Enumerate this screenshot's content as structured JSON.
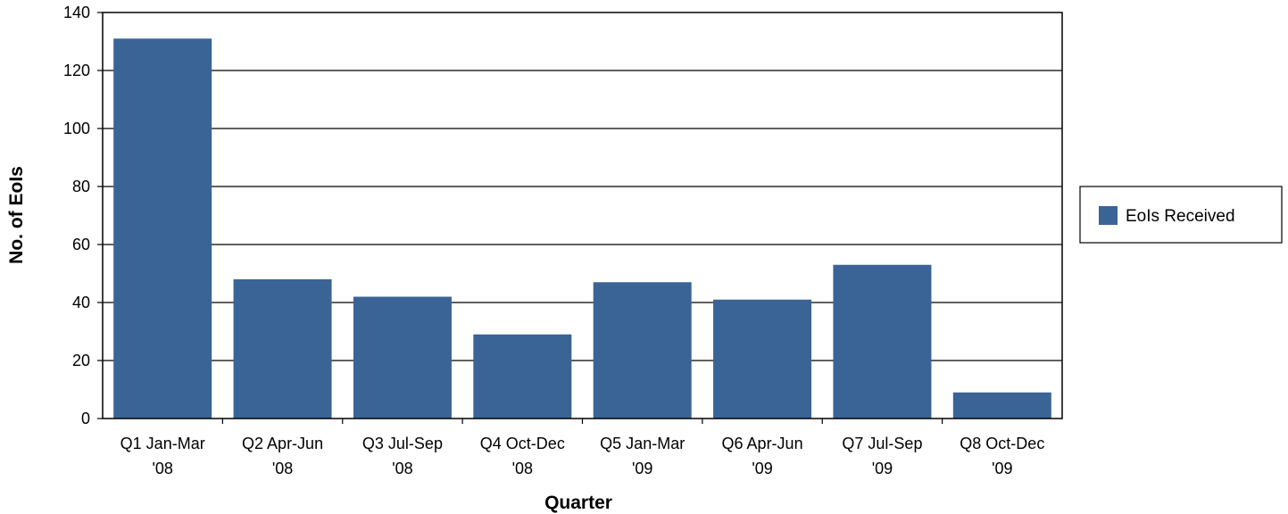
{
  "chart_data": {
    "type": "bar",
    "title": "",
    "xlabel": "Quarter",
    "ylabel": "No. of EoIs",
    "ylim": [
      0,
      140
    ],
    "yticks": [
      0,
      20,
      40,
      60,
      80,
      100,
      120,
      140
    ],
    "grid": true,
    "legend_position": "right",
    "categories": [
      [
        "Q1 Jan-Mar",
        "'08"
      ],
      [
        "Q2 Apr-Jun",
        "'08"
      ],
      [
        "Q3 Jul-Sep",
        "'08"
      ],
      [
        "Q4 Oct-Dec",
        "'08"
      ],
      [
        "Q5 Jan-Mar",
        "'09"
      ],
      [
        "Q6 Apr-Jun",
        "'09"
      ],
      [
        "Q7 Jul-Sep",
        "'09"
      ],
      [
        "Q8 Oct-Dec",
        "'09"
      ]
    ],
    "series": [
      {
        "name": "EoIs Received",
        "color": "#3a6496",
        "values": [
          131,
          48,
          42,
          29,
          47,
          41,
          53,
          9
        ]
      }
    ]
  }
}
